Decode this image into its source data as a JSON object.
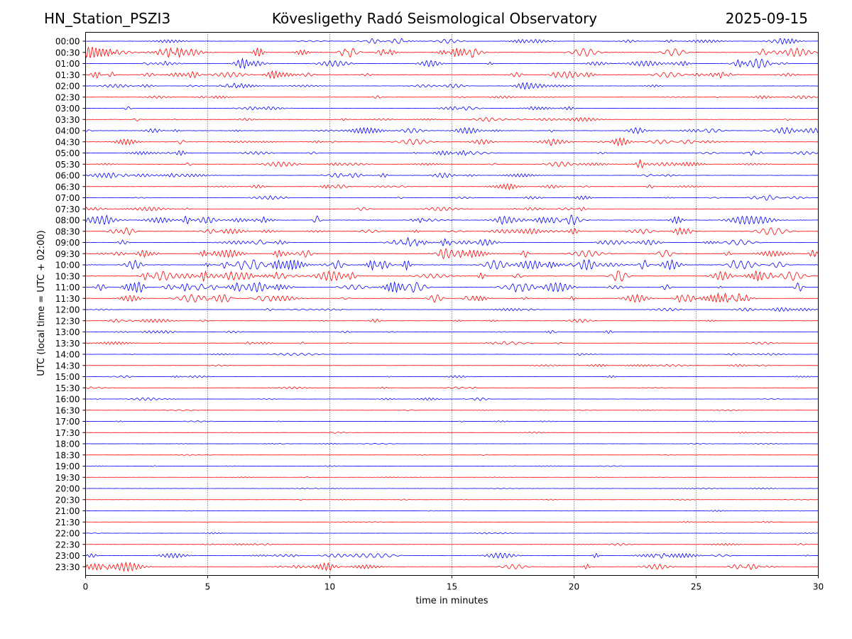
{
  "header": {
    "station": "HN_Station_PSZI3",
    "observatory": "Kövesligethy Radó Seismological Observatory",
    "date": "2025-09-15"
  },
  "chart_data": {
    "type": "line",
    "title": "Kövesligethy Radó Seismological Observatory",
    "xlabel": "time in minutes",
    "ylabel": "UTC (local time = UTC + 02:00)",
    "xlim": [
      0,
      30
    ],
    "x_ticks": [
      0,
      5,
      10,
      15,
      20,
      25,
      30
    ],
    "grid_x": true,
    "row_labels": [
      "00:00",
      "00:30",
      "01:00",
      "01:30",
      "02:00",
      "02:30",
      "03:00",
      "03:30",
      "04:00",
      "04:30",
      "05:00",
      "05:30",
      "06:00",
      "06:30",
      "07:00",
      "07:30",
      "08:00",
      "08:30",
      "09:00",
      "09:30",
      "10:00",
      "10:30",
      "11:00",
      "11:30",
      "12:00",
      "12:30",
      "13:00",
      "13:30",
      "14:00",
      "14:30",
      "15:00",
      "15:30",
      "16:00",
      "16:30",
      "17:00",
      "17:30",
      "18:00",
      "18:30",
      "19:00",
      "19:30",
      "20:00",
      "20:30",
      "21:00",
      "21:30",
      "22:00",
      "22:30",
      "23:00",
      "23:30"
    ],
    "series_colors": [
      "#0000ff",
      "#ff0000"
    ],
    "row_activity": [
      0.5,
      0.8,
      0.6,
      0.7,
      0.4,
      0.3,
      0.3,
      0.35,
      0.55,
      0.5,
      0.45,
      0.45,
      0.45,
      0.35,
      0.35,
      0.35,
      0.8,
      0.65,
      0.6,
      0.7,
      0.95,
      0.85,
      0.9,
      0.7,
      0.35,
      0.3,
      0.3,
      0.25,
      0.2,
      0.2,
      0.2,
      0.18,
      0.25,
      0.12,
      0.12,
      0.12,
      0.1,
      0.1,
      0.1,
      0.1,
      0.12,
      0.1,
      0.12,
      0.12,
      0.15,
      0.2,
      0.5,
      0.55
    ]
  }
}
